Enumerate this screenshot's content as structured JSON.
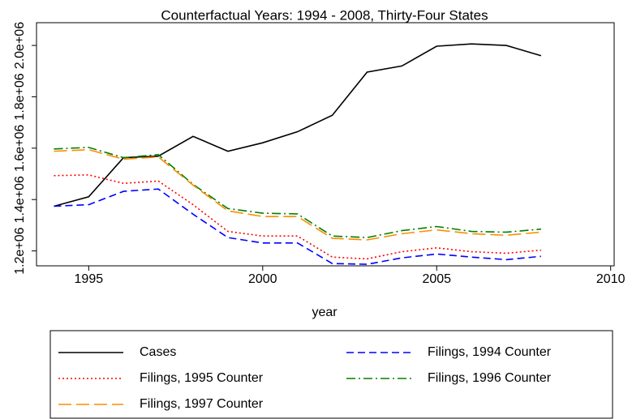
{
  "chart_data": {
    "type": "line",
    "title": "Counterfactual Years: 1994 - 2008, Thirty-Four States",
    "xlabel": "year",
    "x": [
      1994,
      1995,
      1996,
      1997,
      1998,
      1999,
      2000,
      2001,
      2002,
      2003,
      2004,
      2005,
      2006,
      2007,
      2008
    ],
    "series": [
      {
        "name": "Cases",
        "color": "#000000",
        "style": "solid",
        "values": [
          1374000,
          1411000,
          1563000,
          1569000,
          1646000,
          1588000,
          1621000,
          1664000,
          1728000,
          1896000,
          1920000,
          1997000,
          2006000,
          2000000,
          1960000
        ]
      },
      {
        "name": "Filings, 1994 Counter",
        "color": "#0000ff",
        "style": "dash",
        "values": [
          1374000,
          1380000,
          1432000,
          1441000,
          1343000,
          1252000,
          1231000,
          1231000,
          1151000,
          1148000,
          1173000,
          1188000,
          1176000,
          1166000,
          1179000
        ]
      },
      {
        "name": "Filings, 1995 Counter",
        "color": "#ff0000",
        "style": "dot",
        "values": [
          1493000,
          1496000,
          1463000,
          1472000,
          1380000,
          1276000,
          1258000,
          1258000,
          1176000,
          1169000,
          1197000,
          1212000,
          1197000,
          1191000,
          1203000
        ]
      },
      {
        "name": "Filings, 1996 Counter",
        "color": "#008000",
        "style": "dashdot",
        "values": [
          1597000,
          1603000,
          1563000,
          1575000,
          1459000,
          1365000,
          1347000,
          1344000,
          1258000,
          1252000,
          1279000,
          1295000,
          1276000,
          1273000,
          1285000
        ]
      },
      {
        "name": "Filings, 1997 Counter",
        "color": "#ff8c00",
        "style": "longdash",
        "values": [
          1588000,
          1594000,
          1557000,
          1566000,
          1456000,
          1356000,
          1334000,
          1334000,
          1249000,
          1243000,
          1267000,
          1282000,
          1267000,
          1261000,
          1273000
        ]
      }
    ],
    "xlim": [
      1993.5,
      2010.1
    ],
    "xticks": [
      1995,
      2000,
      2005,
      2010
    ],
    "ylim": [
      1142000,
      2088500
    ],
    "yticks": [
      {
        "value": 1200000,
        "label": "1.2e+06"
      },
      {
        "value": 1400000,
        "label": "1.4e+06"
      },
      {
        "value": 1600000,
        "label": "1.6e+06"
      },
      {
        "value": 1800000,
        "label": "1.8e+06"
      },
      {
        "value": 2000000,
        "label": "2.0e+06"
      }
    ],
    "legend": "bottom"
  }
}
